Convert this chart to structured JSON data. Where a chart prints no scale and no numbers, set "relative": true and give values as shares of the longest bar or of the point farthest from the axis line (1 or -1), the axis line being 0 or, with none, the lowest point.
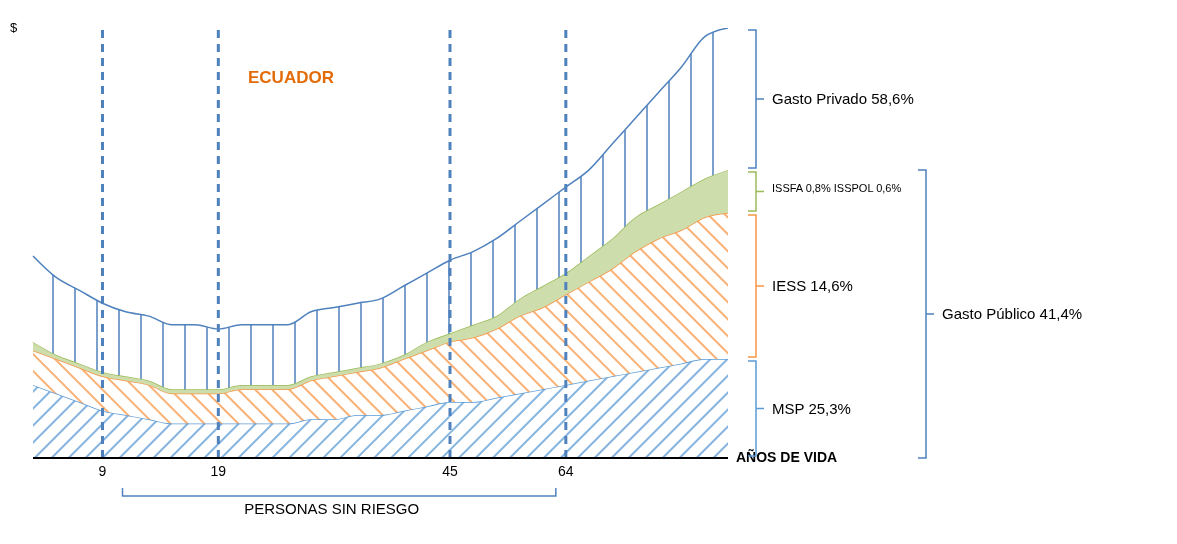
{
  "chart_data": {
    "type": "area",
    "title": "ECUADOR",
    "ylabel": "$",
    "xlabel": "AÑOS DE VIDA",
    "stacked": true,
    "relative": true,
    "categories": [
      null,
      null,
      null,
      "9",
      null,
      null,
      null,
      null,
      "19",
      null,
      null,
      null,
      null,
      null,
      null,
      null,
      null,
      null,
      "45",
      null,
      null,
      null,
      null,
      "64",
      null,
      null,
      null,
      null,
      null,
      null,
      null
    ],
    "series": [
      {
        "name": "MSP 25,3%",
        "color": "#5b9bd5",
        "values": [
          0.17,
          0.15,
          0.13,
          0.11,
          0.1,
          0.09,
          0.08,
          0.08,
          0.08,
          0.08,
          0.08,
          0.08,
          0.09,
          0.09,
          0.1,
          0.1,
          0.11,
          0.12,
          0.13,
          0.13,
          0.14,
          0.15,
          0.16,
          0.17,
          0.18,
          0.19,
          0.2,
          0.21,
          0.22,
          0.23,
          0.23
        ]
      },
      {
        "name": "IESS 14,6%",
        "color": "#f79646",
        "values": [
          0.08,
          0.08,
          0.08,
          0.08,
          0.08,
          0.08,
          0.07,
          0.07,
          0.07,
          0.08,
          0.08,
          0.08,
          0.09,
          0.1,
          0.1,
          0.11,
          0.12,
          0.13,
          0.14,
          0.15,
          0.16,
          0.18,
          0.19,
          0.21,
          0.23,
          0.25,
          0.28,
          0.3,
          0.31,
          0.33,
          0.34
        ]
      },
      {
        "name": "ISSFA 0,8% ISSPOL 0,6%",
        "color": "#9bbb59",
        "values": [
          0.02,
          0.01,
          0.01,
          0.01,
          0.01,
          0.01,
          0.01,
          0.01,
          0.01,
          0.01,
          0.01,
          0.01,
          0.01,
          0.01,
          0.01,
          0.01,
          0.01,
          0.02,
          0.02,
          0.03,
          0.03,
          0.04,
          0.05,
          0.05,
          0.06,
          0.07,
          0.08,
          0.08,
          0.09,
          0.09,
          0.1
        ]
      },
      {
        "name": "Gasto Privado 58,6%",
        "color": "#4f81bd",
        "values": [
          0.2,
          0.18,
          0.17,
          0.16,
          0.15,
          0.15,
          0.15,
          0.15,
          0.14,
          0.14,
          0.14,
          0.14,
          0.15,
          0.15,
          0.15,
          0.15,
          0.16,
          0.16,
          0.17,
          0.17,
          0.18,
          0.18,
          0.19,
          0.2,
          0.2,
          0.22,
          0.23,
          0.26,
          0.29,
          0.33,
          0.33
        ]
      }
    ],
    "ref_lines": [
      {
        "axis": "x",
        "value": "9",
        "color": "#4f81bd",
        "line_style": "dashed"
      },
      {
        "axis": "x",
        "value": "19",
        "color": "#4f81bd",
        "line_style": "dashed"
      },
      {
        "axis": "x",
        "value": "45",
        "color": "#4f81bd",
        "line_style": "dashed"
      },
      {
        "axis": "x",
        "value": "64",
        "color": "#4f81bd",
        "line_style": "dashed"
      }
    ],
    "annotations": [
      "Gasto Público 41,4%",
      "PERSONAS SIN RIESGO"
    ],
    "legend": "right"
  }
}
